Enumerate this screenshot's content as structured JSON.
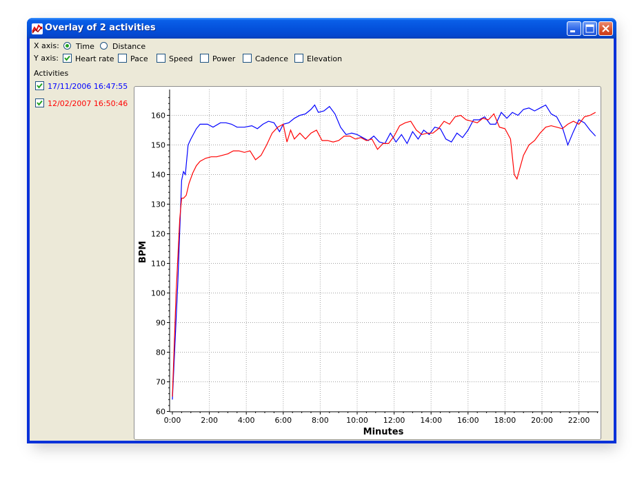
{
  "window": {
    "title": "Overlay of 2 activities",
    "icons": {
      "app": "activity-chart-icon",
      "minimize": "minimize-icon",
      "maximize": "maximize-icon",
      "close": "close-icon"
    }
  },
  "controls": {
    "x_axis_label": "X axis:",
    "x_axis_options": [
      {
        "label": "Time",
        "selected": true
      },
      {
        "label": "Distance",
        "selected": false
      }
    ],
    "y_axis_label": "Y axis:",
    "y_axis_options": [
      {
        "label": "Heart rate",
        "checked": true
      },
      {
        "label": "Pace",
        "checked": false
      },
      {
        "label": "Speed",
        "checked": false
      },
      {
        "label": "Power",
        "checked": false
      },
      {
        "label": "Cadence",
        "checked": false
      },
      {
        "label": "Elevation",
        "checked": false
      }
    ]
  },
  "activities": {
    "heading": "Activities",
    "items": [
      {
        "label": "17/11/2006 16:47:55",
        "color": "#0000ff",
        "checked": true
      },
      {
        "label": "12/02/2007 16:50:46",
        "color": "#ff0000",
        "checked": true
      }
    ]
  },
  "chart_data": {
    "type": "line",
    "title": "",
    "xlabel": "Minutes",
    "ylabel": "BPM",
    "xlim": [
      0,
      23
    ],
    "ylim": [
      60,
      167
    ],
    "x_ticks": [
      "0:00",
      "2:00",
      "4:00",
      "6:00",
      "8:00",
      "10:00",
      "12:00",
      "14:00",
      "16:00",
      "18:00",
      "20:00",
      "22:00"
    ],
    "y_ticks": [
      60,
      70,
      80,
      90,
      100,
      110,
      120,
      130,
      140,
      150,
      160
    ],
    "grid": true,
    "series": [
      {
        "label": "17/11/2006 16:47:55",
        "color": "#0000ff",
        "x": [
          0,
          0.3,
          0.5,
          0.6,
          0.7,
          0.85,
          1.0,
          1.3,
          1.5,
          1.9,
          2.2,
          2.6,
          2.9,
          3.2,
          3.5,
          3.9,
          4.3,
          4.6,
          4.9,
          5.2,
          5.5,
          5.8,
          6.0,
          6.3,
          6.6,
          6.9,
          7.2,
          7.5,
          7.7,
          7.9,
          8.2,
          8.5,
          8.8,
          9.1,
          9.4,
          9.7,
          10.0,
          10.3,
          10.6,
          10.9,
          11.2,
          11.5,
          11.8,
          12.1,
          12.4,
          12.7,
          13.0,
          13.3,
          13.6,
          13.9,
          14.2,
          14.5,
          14.8,
          15.1,
          15.4,
          15.7,
          16.0,
          16.3,
          16.6,
          16.9,
          17.2,
          17.5,
          17.8,
          18.1,
          18.4,
          18.7,
          19.0,
          19.3,
          19.6,
          19.9,
          20.2,
          20.5,
          20.8,
          21.1,
          21.4,
          21.7,
          22.0,
          22.3,
          22.6,
          22.9
        ],
        "y": [
          64,
          104,
          138,
          141,
          140,
          150,
          152,
          155.5,
          157,
          157,
          156,
          157.5,
          157.5,
          157,
          156,
          156,
          156.5,
          155.5,
          157,
          158,
          157.5,
          154.5,
          157,
          157.5,
          159,
          160,
          160.5,
          162,
          163.5,
          161,
          161.5,
          163,
          160.5,
          156,
          153.5,
          154,
          153.5,
          152.5,
          151.5,
          153,
          151,
          150.5,
          154,
          151,
          153.5,
          150.5,
          154.5,
          152,
          155,
          153.5,
          156,
          155.5,
          152,
          151,
          154,
          152.5,
          155,
          158.5,
          158.5,
          159.5,
          157,
          157,
          161,
          159,
          161,
          160,
          162,
          162.5,
          161.5,
          162.5,
          163.5,
          160.5,
          159.5,
          156,
          150,
          154.5,
          158.5,
          157.5,
          155,
          153
        ]
      },
      {
        "label": "12/02/2007 16:50:46",
        "color": "#ff0000",
        "x": [
          0,
          0.2,
          0.4,
          0.5,
          0.6,
          0.75,
          0.9,
          1.1,
          1.3,
          1.5,
          1.8,
          2.1,
          2.4,
          2.7,
          3.0,
          3.3,
          3.6,
          3.9,
          4.2,
          4.5,
          4.8,
          5.1,
          5.4,
          5.7,
          6.0,
          6.2,
          6.4,
          6.6,
          6.9,
          7.2,
          7.5,
          7.8,
          8.1,
          8.4,
          8.7,
          9.0,
          9.3,
          9.6,
          9.9,
          10.2,
          10.5,
          10.8,
          11.1,
          11.4,
          11.7,
          12.0,
          12.3,
          12.6,
          12.9,
          13.2,
          13.5,
          13.8,
          14.1,
          14.4,
          14.7,
          15.0,
          15.3,
          15.6,
          15.9,
          16.2,
          16.5,
          16.8,
          17.1,
          17.4,
          17.7,
          18.0,
          18.3,
          18.5,
          18.65,
          18.8,
          19.0,
          19.3,
          19.6,
          19.9,
          20.2,
          20.5,
          20.8,
          21.1,
          21.4,
          21.7,
          22.0,
          22.3,
          22.6,
          22.9
        ],
        "y": [
          65,
          100,
          125,
          132,
          132,
          133,
          137,
          140.5,
          143,
          144.5,
          145.5,
          146,
          146,
          146.5,
          147,
          148,
          148,
          147.5,
          148,
          145,
          146.5,
          150,
          154,
          156,
          157,
          151,
          155,
          152,
          154,
          152,
          154,
          155,
          151.5,
          151.5,
          151,
          151.5,
          153,
          153,
          152,
          152.5,
          151.5,
          152,
          148.5,
          150.5,
          150.5,
          153,
          156.5,
          157.5,
          158,
          155,
          153.5,
          154,
          154,
          155.5,
          158,
          157,
          159.5,
          160,
          158.5,
          158,
          157.5,
          159,
          158.5,
          160.5,
          156,
          155.5,
          152,
          140,
          138.5,
          142,
          146.5,
          150,
          151.5,
          154,
          156,
          156.5,
          156,
          155.5,
          157,
          158,
          157,
          159.5,
          160,
          161
        ]
      }
    ]
  }
}
